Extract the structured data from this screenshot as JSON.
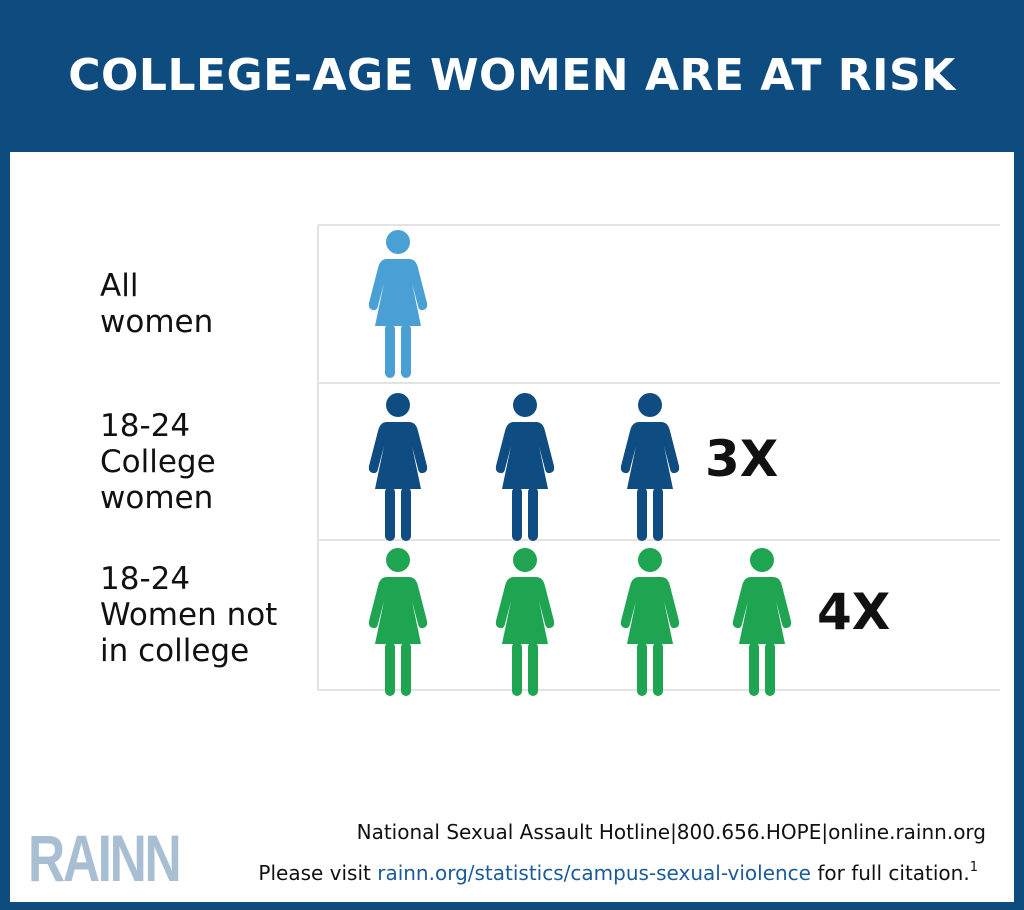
{
  "header": {
    "title": "COLLEGE-AGE WOMEN ARE AT RISK"
  },
  "chart_data": {
    "type": "pictogram",
    "categories": [
      [
        "All",
        "women"
      ],
      [
        "18-24",
        "College",
        "women"
      ],
      [
        "18-24",
        "Women not",
        "in college"
      ]
    ],
    "values": [
      1,
      3,
      4
    ],
    "value_labels": [
      "",
      "3X",
      "4X"
    ],
    "colors": [
      "#4a9fd4",
      "#0f4c81",
      "#1fa552"
    ]
  },
  "footer": {
    "logo": "RAINN",
    "hotline": "National Sexual Assault Hotline|800.656.HOPE|online.rainn.org",
    "citation_prefix": "Please visit ",
    "citation_link": "rainn.org/statistics/campus-sexual-violence",
    "citation_suffix": " for full citation.",
    "citation_sup": "1"
  }
}
